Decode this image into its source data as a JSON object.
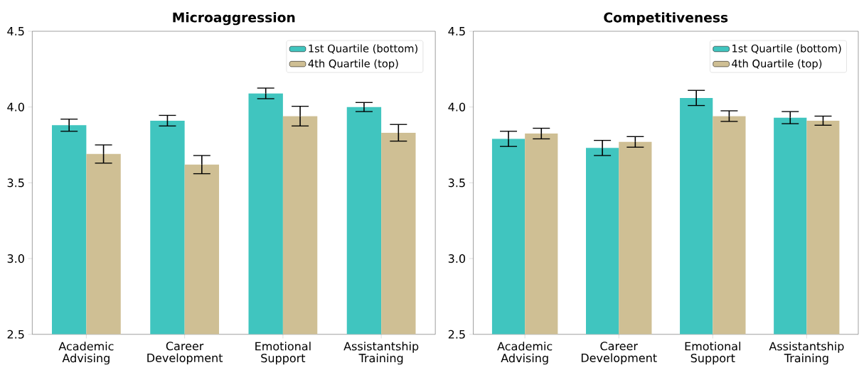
{
  "chart_data": [
    {
      "type": "bar",
      "title": "Microaggression",
      "categories": [
        "Academic Advising",
        "Career Development",
        "Emotional Support",
        "Assistantship Training"
      ],
      "series": [
        {
          "name": "1st Quartile (bottom)",
          "color": "#40c5bf",
          "values": [
            3.88,
            3.91,
            4.09,
            4.0
          ],
          "errors": [
            0.04,
            0.035,
            0.035,
            0.03
          ]
        },
        {
          "name": "4th Quartile (top)",
          "color": "#cfbf94",
          "values": [
            3.69,
            3.62,
            3.94,
            3.83
          ],
          "errors": [
            0.06,
            0.06,
            0.065,
            0.055
          ]
        }
      ],
      "ylim": [
        2.5,
        4.5
      ],
      "yticks": [
        {
          "value": 2.5,
          "label": "2.5"
        },
        {
          "value": 3,
          "label": "3.0"
        },
        {
          "value": 3.5,
          "label": "3.5"
        },
        {
          "value": 4,
          "label": "4.0"
        },
        {
          "value": 4.5,
          "label": "4.5"
        }
      ],
      "legend": "top right"
    },
    {
      "type": "bar",
      "title": "Competitiveness",
      "categories": [
        "Academic Advising",
        "Career Development",
        "Emotional Support",
        "Assistantship Training"
      ],
      "series": [
        {
          "name": "1st Quartile (bottom)",
          "color": "#40c5bf",
          "values": [
            3.79,
            3.73,
            4.06,
            3.93
          ],
          "errors": [
            0.05,
            0.05,
            0.05,
            0.04
          ]
        },
        {
          "name": "4th Quartile (top)",
          "color": "#cfbf94",
          "values": [
            3.825,
            3.77,
            3.94,
            3.91
          ],
          "errors": [
            0.035,
            0.035,
            0.035,
            0.03
          ]
        }
      ],
      "ylim": [
        2.5,
        4.5
      ],
      "yticks": [
        {
          "value": 2.5,
          "label": "2.5"
        },
        {
          "value": 3,
          "label": "3.0"
        },
        {
          "value": 3.5,
          "label": "3.5"
        },
        {
          "value": 4,
          "label": "4.0"
        },
        {
          "value": 4.5,
          "label": "4.5"
        }
      ],
      "legend": "top right"
    }
  ]
}
